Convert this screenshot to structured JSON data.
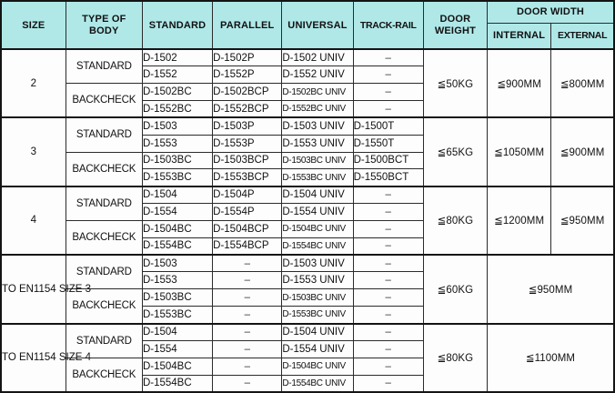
{
  "colors": {
    "header_bg": "#b0e8e8",
    "grid_line": "#2b2b2b",
    "heavy_line": "#141414",
    "text": "#111111",
    "cell_bg": "#fdfdfd"
  },
  "table": {
    "dash": "–",
    "headers": {
      "size": "SIZE",
      "type_of_body": "TYPE OF BODY",
      "standard": "STANDARD",
      "parallel": "PARALLEL",
      "universal": "UNIVERSAL",
      "track_rail": "TRACK-RAIL",
      "door_weight": "DOOR WEIGHT",
      "door_width": "DOOR WIDTH",
      "internal": "INTERNAL",
      "external": "EXTERNAL"
    },
    "sections": [
      {
        "size": "2",
        "body_types": [
          {
            "label": "STANDARD",
            "rows": [
              {
                "standard": "D-1502",
                "parallel": "D-1502P",
                "universal": "D-1502 UNIV",
                "track_rail": "–"
              },
              {
                "standard": "D-1552",
                "parallel": "D-1552P",
                "universal": "D-1552 UNIV",
                "track_rail": "–"
              }
            ]
          },
          {
            "label": "BACKCHECK",
            "rows": [
              {
                "standard": "D-1502BC",
                "parallel": "D-1502BCP",
                "universal": "D-1502BC UNIV",
                "track_rail": "–"
              },
              {
                "standard": "D-1552BC",
                "parallel": "D-1552BCP",
                "universal": "D-1552BC UNIV",
                "track_rail": "–"
              }
            ]
          }
        ],
        "door_weight": "≦50KG",
        "door_width_internal": "≦900MM",
        "door_width_external": "≦800MM"
      },
      {
        "size": "3",
        "body_types": [
          {
            "label": "STANDARD",
            "rows": [
              {
                "standard": "D-1503",
                "parallel": "D-1503P",
                "universal": "D-1503 UNIV",
                "track_rail": "D-1500T"
              },
              {
                "standard": "D-1553",
                "parallel": "D-1553P",
                "universal": "D-1553 UNIV",
                "track_rail": "D-1550T"
              }
            ]
          },
          {
            "label": "BACKCHECK",
            "rows": [
              {
                "standard": "D-1503BC",
                "parallel": "D-1503BCP",
                "universal": "D-1503BC UNIV",
                "track_rail": "D-1500BCT"
              },
              {
                "standard": "D-1553BC",
                "parallel": "D-1553BCP",
                "universal": "D-1553BC UNIV",
                "track_rail": "D-1550BCT"
              }
            ]
          }
        ],
        "door_weight": "≦65KG",
        "door_width_internal": "≦1050MM",
        "door_width_external": "≦900MM"
      },
      {
        "size": "4",
        "body_types": [
          {
            "label": "STANDARD",
            "rows": [
              {
                "standard": "D-1504",
                "parallel": "D-1504P",
                "universal": "D-1504 UNIV",
                "track_rail": "–"
              },
              {
                "standard": "D-1554",
                "parallel": "D-1554P",
                "universal": "D-1554 UNIV",
                "track_rail": "–"
              }
            ]
          },
          {
            "label": "BACKCHECK",
            "rows": [
              {
                "standard": "D-1504BC",
                "parallel": "D-1504BCP",
                "universal": "D-1504BC UNIV",
                "track_rail": "–"
              },
              {
                "standard": "D-1554BC",
                "parallel": "D-1554BCP",
                "universal": "D-1554BC UNIV",
                "track_rail": "–"
              }
            ]
          }
        ],
        "door_weight": "≦80KG",
        "door_width_internal": "≦1200MM",
        "door_width_external": "≦950MM"
      },
      {
        "size": "TO EN1154 SIZE 3",
        "body_types": [
          {
            "label": "STANDARD",
            "rows": [
              {
                "standard": "D-1503",
                "parallel": "–",
                "universal": "D-1503 UNIV",
                "track_rail": "–"
              },
              {
                "standard": "D-1553",
                "parallel": "–",
                "universal": "D-1553 UNIV",
                "track_rail": "–"
              }
            ]
          },
          {
            "label": "BACKCHECK",
            "rows": [
              {
                "standard": "D-1503BC",
                "parallel": "–",
                "universal": "D-1503BC UNIV",
                "track_rail": "–"
              },
              {
                "standard": "D-1553BC",
                "parallel": "–",
                "universal": "D-1553BC UNIV",
                "track_rail": "–"
              }
            ]
          }
        ],
        "door_weight": "≦60KG",
        "door_width_combined": "≦950MM"
      },
      {
        "size": "TO EN1154 SIZE 4",
        "body_types": [
          {
            "label": "STANDARD",
            "rows": [
              {
                "standard": "D-1504",
                "parallel": "–",
                "universal": "D-1504 UNIV",
                "track_rail": "–"
              },
              {
                "standard": "D-1554",
                "parallel": "–",
                "universal": "D-1554 UNIV",
                "track_rail": "–"
              }
            ]
          },
          {
            "label": "BACKCHECK",
            "rows": [
              {
                "standard": "D-1504BC",
                "parallel": "–",
                "universal": "D-1504BC UNIV",
                "track_rail": "–"
              },
              {
                "standard": "D-1554BC",
                "parallel": "–",
                "universal": "D-1554BC UNIV",
                "track_rail": "–"
              }
            ]
          }
        ],
        "door_weight": "≦80KG",
        "door_width_combined": "≦1100MM"
      }
    ]
  }
}
